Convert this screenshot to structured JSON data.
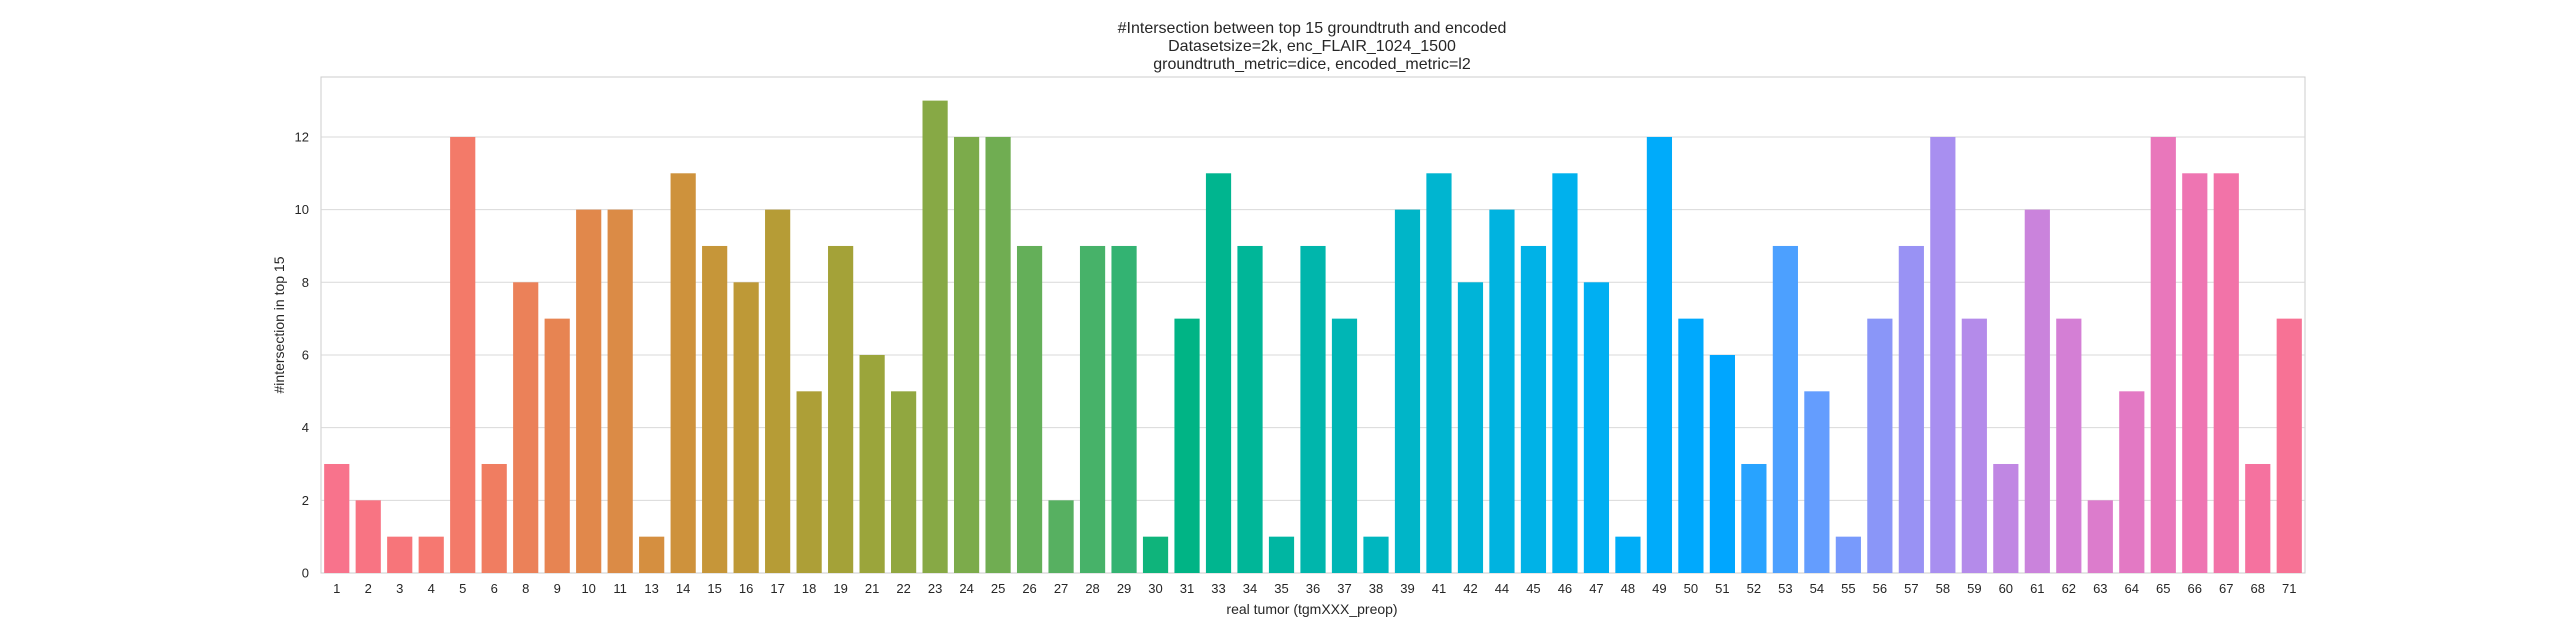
{
  "chart_data": {
    "type": "bar",
    "title_lines": [
      "#Intersection between top 15 groundtruth and encoded",
      "Datasetsize=2k, enc_FLAIR_1024_1500",
      "groundtruth_metric=dice, encoded_metric=l2"
    ],
    "xlabel": "real tumor (tgmXXX_preop)",
    "ylabel": "#intersection in top 15",
    "categories": [
      "1",
      "2",
      "3",
      "4",
      "5",
      "6",
      "8",
      "9",
      "10",
      "11",
      "13",
      "14",
      "15",
      "16",
      "17",
      "18",
      "19",
      "21",
      "22",
      "23",
      "24",
      "25",
      "26",
      "27",
      "28",
      "29",
      "30",
      "31",
      "33",
      "34",
      "35",
      "36",
      "37",
      "38",
      "39",
      "41",
      "42",
      "44",
      "45",
      "46",
      "47",
      "48",
      "49",
      "50",
      "51",
      "52",
      "53",
      "54",
      "55",
      "56",
      "57",
      "58",
      "59",
      "60",
      "61",
      "62",
      "63",
      "64",
      "65",
      "66",
      "67",
      "68",
      "71"
    ],
    "values": [
      3,
      2,
      1,
      1,
      12,
      3,
      8,
      7,
      10,
      10,
      1,
      11,
      9,
      8,
      10,
      5,
      9,
      6,
      5,
      13,
      12,
      12,
      9,
      2,
      9,
      9,
      1,
      7,
      11,
      9,
      1,
      9,
      7,
      1,
      10,
      11,
      8,
      10,
      9,
      11,
      8,
      1,
      12,
      7,
      6,
      3,
      9,
      5,
      1,
      7,
      9,
      12,
      7,
      3,
      10,
      7,
      2,
      5,
      12,
      11,
      11,
      3,
      7
    ],
    "yticks": [
      0,
      2,
      4,
      6,
      8,
      10,
      12
    ],
    "ylim": [
      0,
      13.65
    ],
    "grid": true,
    "legend": "none"
  }
}
